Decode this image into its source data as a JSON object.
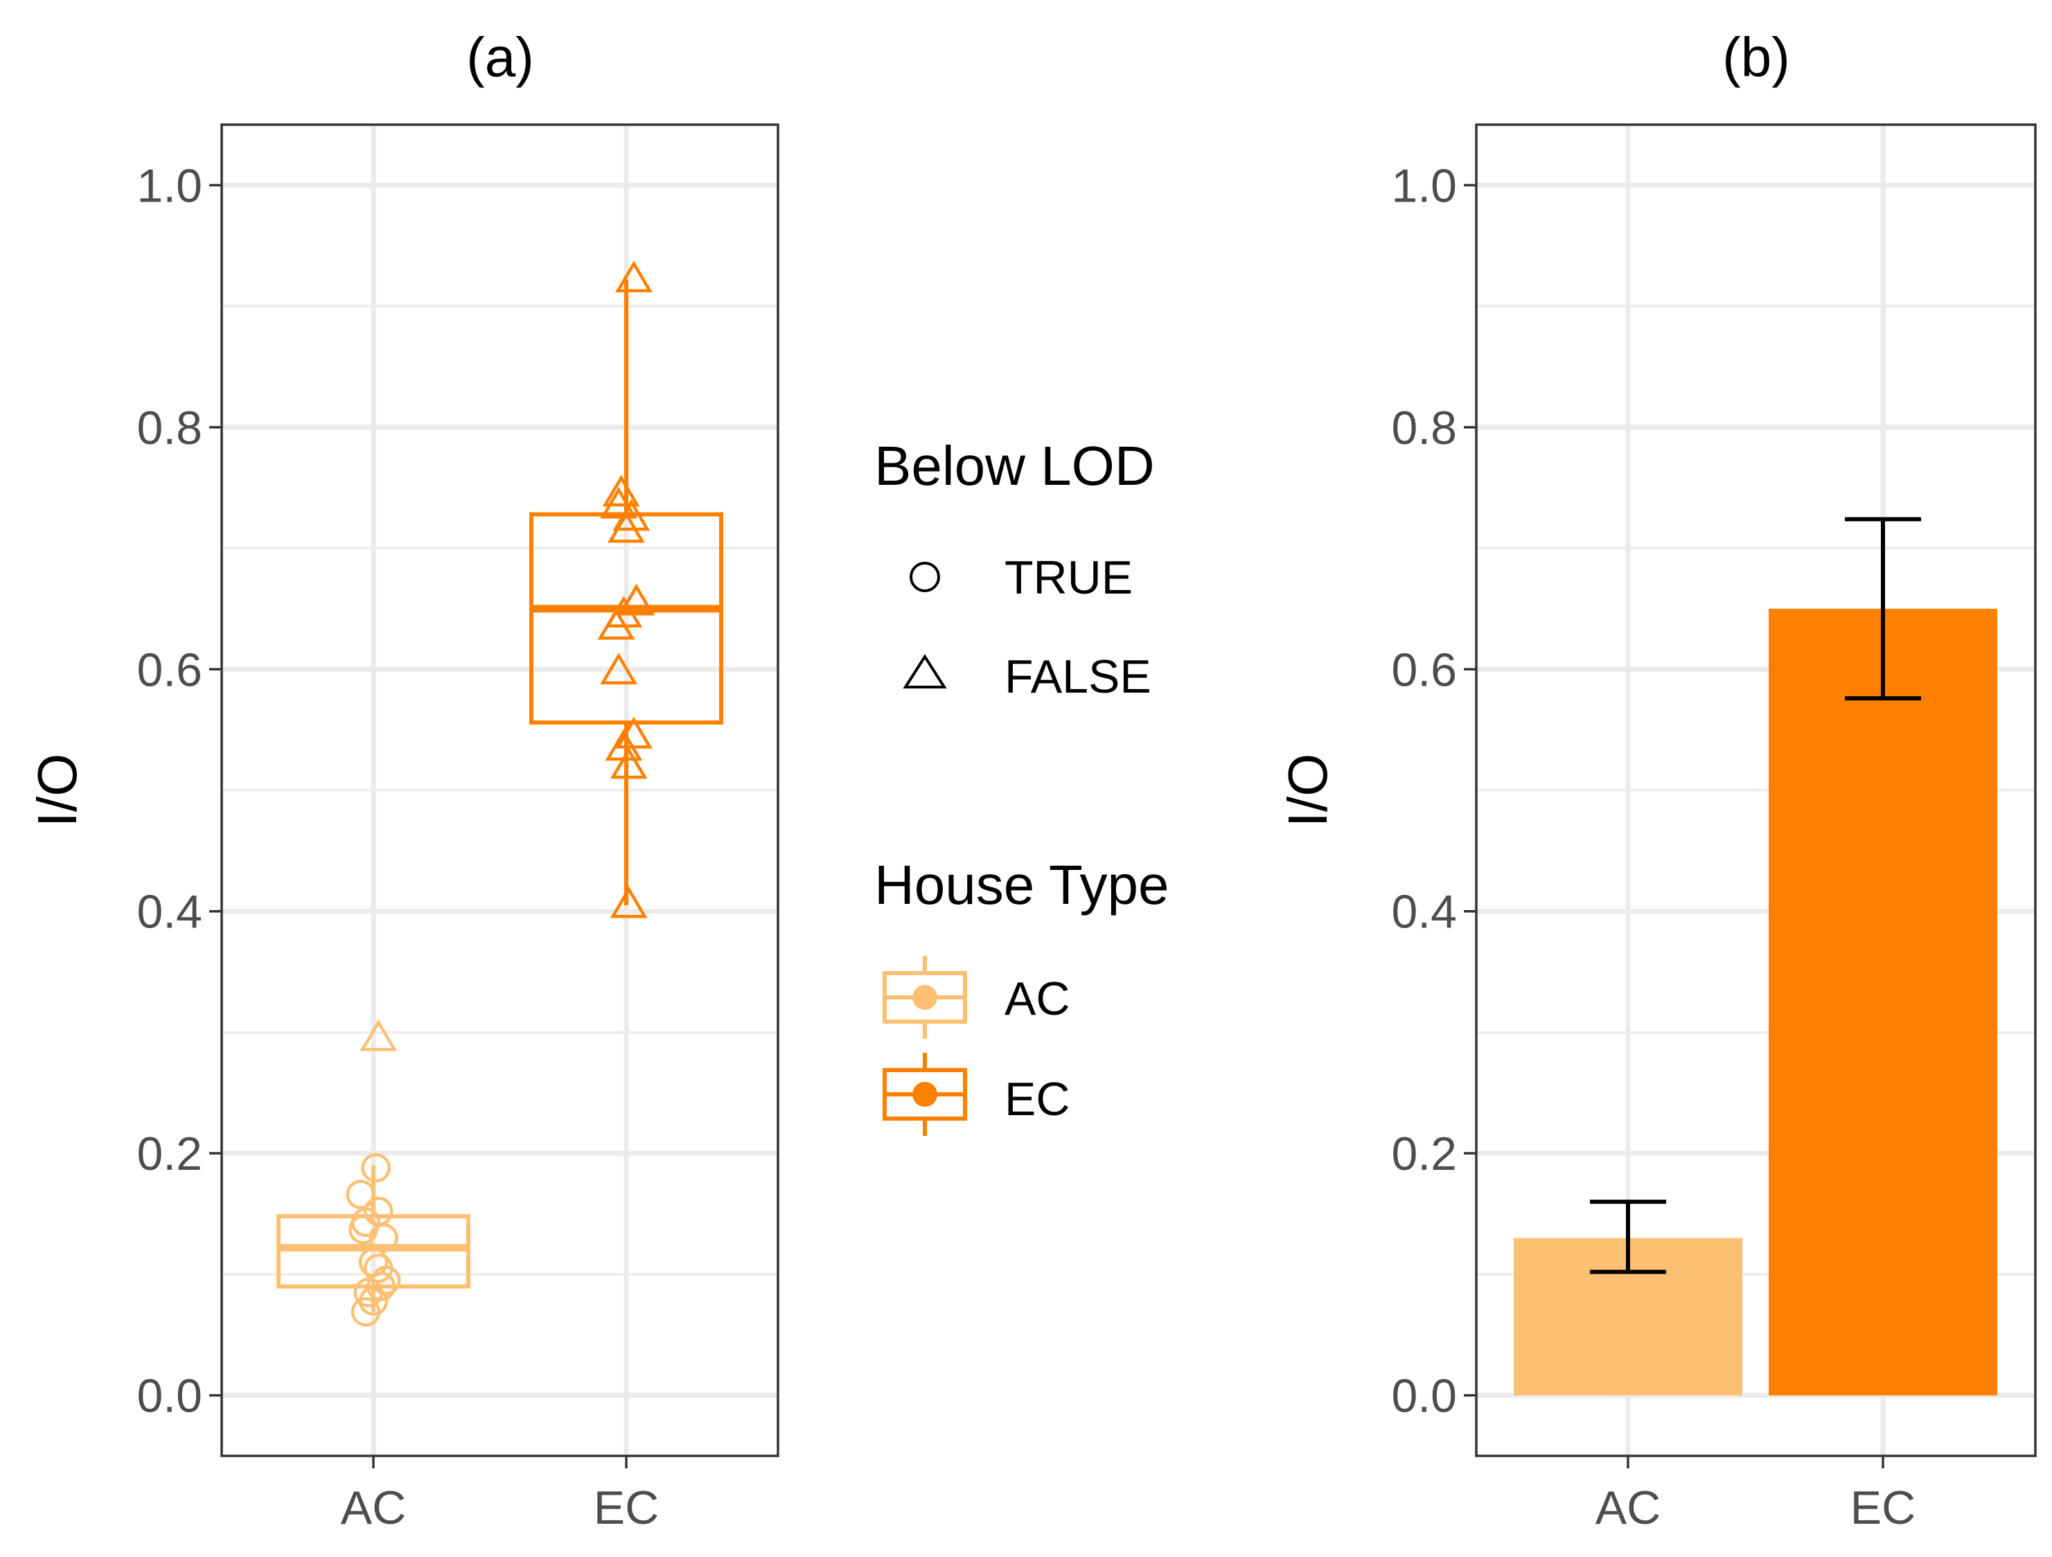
{
  "colors": {
    "AC": "#fdc073",
    "EC": "#ff8000",
    "errorbar": "#000000"
  },
  "chart_data": [
    {
      "panel": "a",
      "type": "box",
      "title": "(a)",
      "ylabel": "I/O",
      "xlabel": "",
      "categories": [
        "AC",
        "EC"
      ],
      "ylim": [
        -0.05,
        1.05
      ],
      "yticks": [
        0.0,
        0.2,
        0.4,
        0.6,
        0.8,
        1.0
      ],
      "ytick_labels": [
        "0.0",
        "0.2",
        "0.4",
        "0.6",
        "0.8",
        "1.0"
      ],
      "grid": true,
      "boxes": [
        {
          "category": "AC",
          "q1": 0.09,
          "median": 0.122,
          "q3": 0.148,
          "whisker_low": 0.069,
          "whisker_high": 0.19
        },
        {
          "category": "EC",
          "q1": 0.556,
          "median": 0.65,
          "q3": 0.728,
          "whisker_low": 0.405,
          "whisker_high": 0.922
        }
      ],
      "points": [
        {
          "category": "AC",
          "y": 0.295,
          "below_lod": false,
          "jitter": 0.02
        },
        {
          "category": "AC",
          "y": 0.188,
          "below_lod": true,
          "jitter": 0.01
        },
        {
          "category": "AC",
          "y": 0.166,
          "below_lod": true,
          "jitter": -0.05
        },
        {
          "category": "AC",
          "y": 0.152,
          "below_lod": true,
          "jitter": 0.02
        },
        {
          "category": "AC",
          "y": 0.143,
          "below_lod": true,
          "jitter": -0.03
        },
        {
          "category": "AC",
          "y": 0.137,
          "below_lod": true,
          "jitter": -0.04
        },
        {
          "category": "AC",
          "y": 0.13,
          "below_lod": true,
          "jitter": 0.04
        },
        {
          "category": "AC",
          "y": 0.11,
          "below_lod": true,
          "jitter": 0.0
        },
        {
          "category": "AC",
          "y": 0.105,
          "below_lod": true,
          "jitter": 0.02
        },
        {
          "category": "AC",
          "y": 0.095,
          "below_lod": true,
          "jitter": 0.05
        },
        {
          "category": "AC",
          "y": 0.09,
          "below_lod": true,
          "jitter": 0.03
        },
        {
          "category": "AC",
          "y": 0.085,
          "below_lod": true,
          "jitter": -0.02
        },
        {
          "category": "AC",
          "y": 0.078,
          "below_lod": true,
          "jitter": 0.0
        },
        {
          "category": "AC",
          "y": 0.069,
          "below_lod": true,
          "jitter": -0.03
        },
        {
          "category": "EC",
          "y": 0.922,
          "below_lod": false,
          "jitter": 0.03
        },
        {
          "category": "EC",
          "y": 0.745,
          "below_lod": false,
          "jitter": -0.02
        },
        {
          "category": "EC",
          "y": 0.735,
          "below_lod": false,
          "jitter": -0.03
        },
        {
          "category": "EC",
          "y": 0.725,
          "below_lod": false,
          "jitter": 0.02
        },
        {
          "category": "EC",
          "y": 0.715,
          "below_lod": false,
          "jitter": 0.0
        },
        {
          "category": "EC",
          "y": 0.655,
          "below_lod": false,
          "jitter": 0.04
        },
        {
          "category": "EC",
          "y": 0.645,
          "below_lod": false,
          "jitter": -0.01
        },
        {
          "category": "EC",
          "y": 0.635,
          "below_lod": false,
          "jitter": -0.04
        },
        {
          "category": "EC",
          "y": 0.598,
          "below_lod": false,
          "jitter": -0.03
        },
        {
          "category": "EC",
          "y": 0.545,
          "below_lod": false,
          "jitter": 0.03
        },
        {
          "category": "EC",
          "y": 0.535,
          "below_lod": false,
          "jitter": -0.01
        },
        {
          "category": "EC",
          "y": 0.52,
          "below_lod": false,
          "jitter": 0.01
        },
        {
          "category": "EC",
          "y": 0.405,
          "below_lod": false,
          "jitter": 0.01
        }
      ]
    },
    {
      "panel": "b",
      "type": "bar",
      "title": "(b)",
      "ylabel": "I/O",
      "xlabel": "",
      "categories": [
        "AC",
        "EC"
      ],
      "values": [
        0.13,
        0.65
      ],
      "error_low": [
        0.102,
        0.576
      ],
      "error_high": [
        0.16,
        0.724
      ],
      "ylim": [
        -0.05,
        1.05
      ],
      "yticks": [
        0.0,
        0.2,
        0.4,
        0.6,
        0.8,
        1.0
      ],
      "ytick_labels": [
        "0.0",
        "0.2",
        "0.4",
        "0.6",
        "0.8",
        "1.0"
      ],
      "grid": true
    }
  ],
  "legend": {
    "placement": "center, between panels",
    "shape": {
      "title": "Below LOD",
      "entries": [
        {
          "label": "TRUE",
          "symbol": "circle"
        },
        {
          "label": "FALSE",
          "symbol": "triangle"
        }
      ]
    },
    "fill": {
      "title": "House Type",
      "entries": [
        {
          "label": "AC",
          "color": "#fdc073"
        },
        {
          "label": "EC",
          "color": "#ff8000"
        }
      ]
    }
  }
}
